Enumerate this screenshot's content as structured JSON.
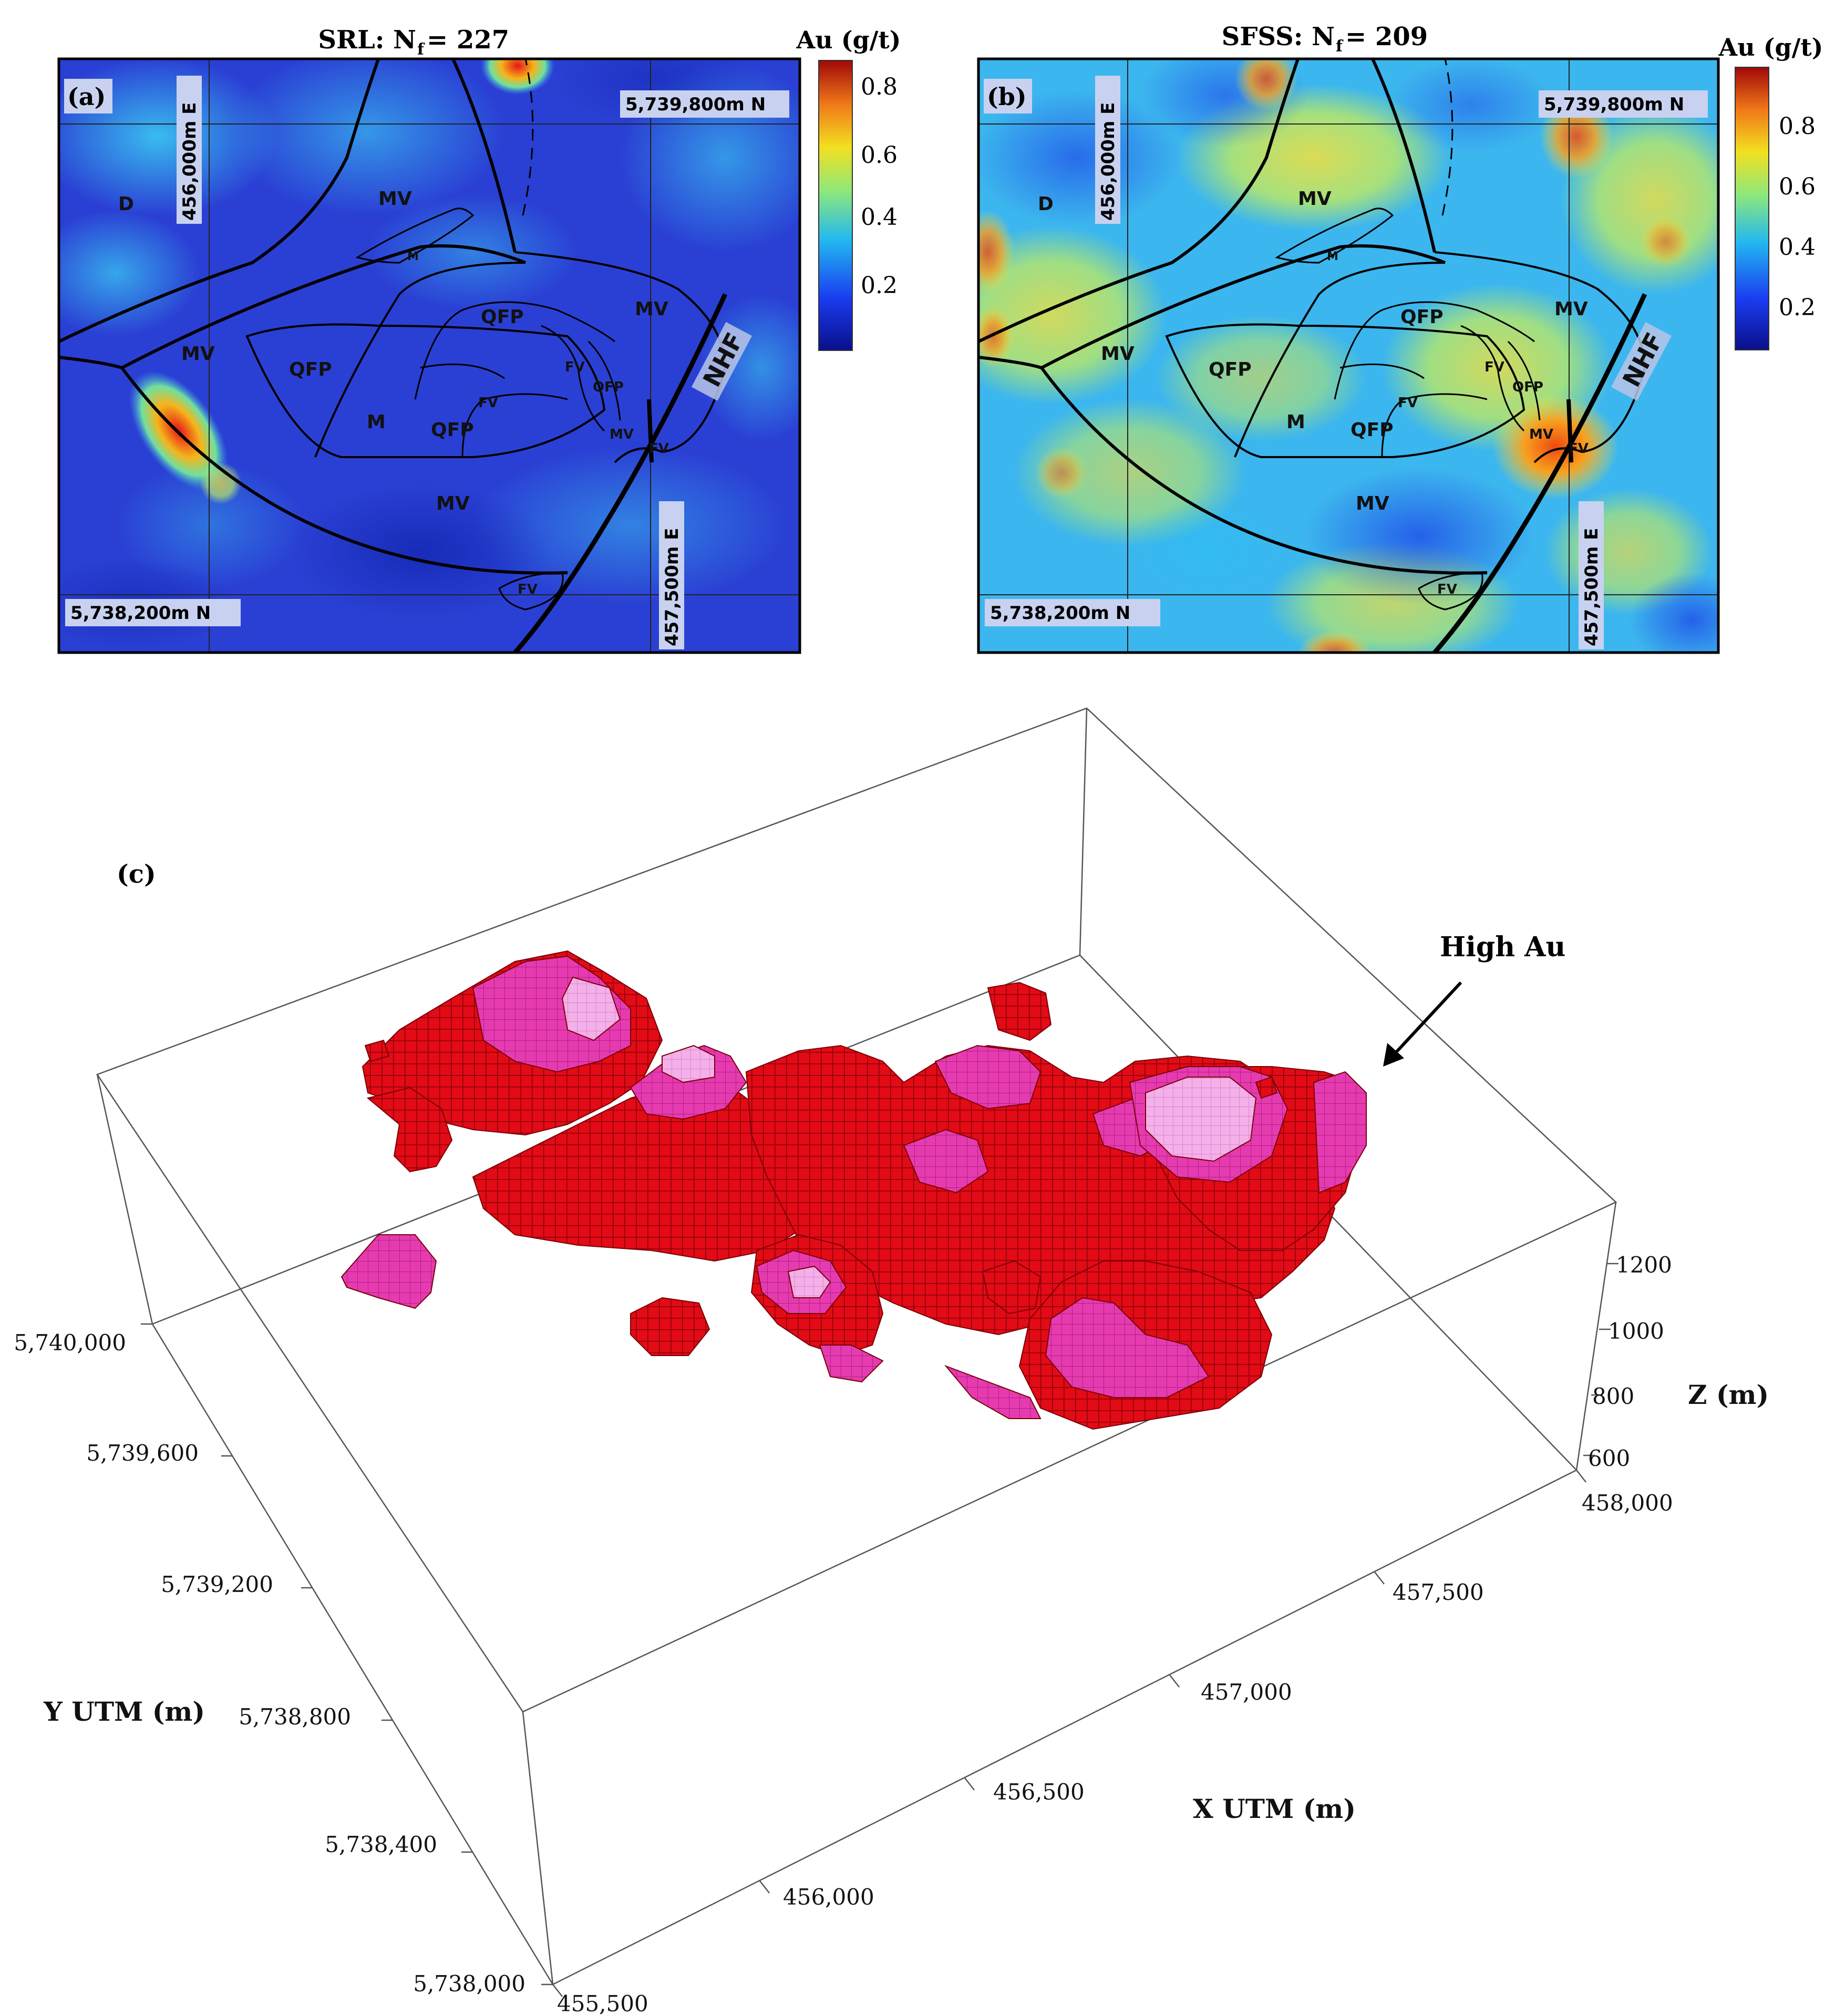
{
  "panel_a": {
    "label": "(a)",
    "title": "SRL: N",
    "title_sub": "f",
    "title_value": " = 227",
    "colorbar_title": "Au (g/t)",
    "colorbar_ticks": [
      "0.8",
      "0.6",
      "0.4",
      "0.2"
    ],
    "northing_top": "5,739,800m N",
    "northing_bottom": "5,738,200m N",
    "easting_left": "456,000m E",
    "easting_right": "457,500m E"
  },
  "panel_b": {
    "label": "(b)",
    "title": "SFSS: N",
    "title_sub": "f",
    "title_value": " = 209",
    "colorbar_title": "Au (g/t)",
    "colorbar_ticks": [
      "0.8",
      "0.6",
      "0.4",
      "0.2"
    ],
    "northing_top": "5,739,800m N",
    "northing_bottom": "5,738,200m N",
    "easting_left": "456,000m E",
    "easting_right": "457,500m E"
  },
  "units": {
    "D": "D",
    "MV": "MV",
    "M": "M",
    "QFP": "QFP",
    "FV": "FV",
    "NHF": "NHF"
  },
  "panel_c": {
    "label": "(c)",
    "annotation": "High Au",
    "x_axis_label": "X UTM (m)",
    "y_axis_label": "Y UTM (m)",
    "z_axis_label": "Z (m)",
    "x_ticks": [
      "455,500",
      "456,000",
      "456,500",
      "457,000",
      "457,500",
      "458,000"
    ],
    "y_ticks": [
      "5,738,000",
      "5,738,400",
      "5,738,800",
      "5,739,200",
      "5,739,600",
      "5,740,000"
    ],
    "z_ticks": [
      "600",
      "800",
      "1000",
      "1200"
    ]
  },
  "colors": {
    "low": "#2a3fd0",
    "mid": "#3aa0f0",
    "high": "#d81010",
    "voxel_red": "#e00a14",
    "voxel_pink": "#e83cb4",
    "voxel_light": "#f2a8e4"
  }
}
